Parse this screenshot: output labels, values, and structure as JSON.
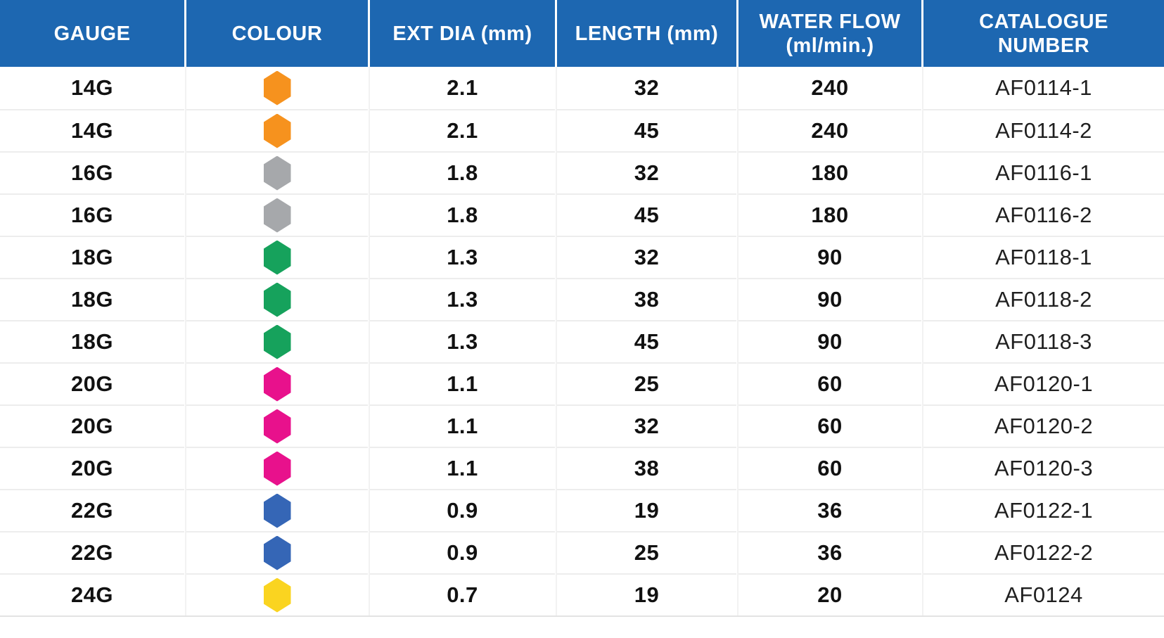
{
  "table": {
    "header_bg": "#1d67b1",
    "header_text_color": "#ffffff",
    "columns": [
      {
        "id": "gauge",
        "label": "GAUGE"
      },
      {
        "id": "colour",
        "label": "COLOUR"
      },
      {
        "id": "ext_dia",
        "label": "EXT DIA (mm)"
      },
      {
        "id": "length",
        "label": "LENGTH (mm)"
      },
      {
        "id": "water_flow",
        "label": "WATER FLOW\n(ml/min.)"
      },
      {
        "id": "catalogue",
        "label": "CATALOGUE\nNUMBER"
      }
    ],
    "rows": [
      {
        "gauge": "14G",
        "colour": "orange",
        "colour_hex": "#f6921e",
        "ext_dia": "2.1",
        "length": "32",
        "water_flow": "240",
        "catalogue": "AF0114-1"
      },
      {
        "gauge": "14G",
        "colour": "orange",
        "colour_hex": "#f6921e",
        "ext_dia": "2.1",
        "length": "45",
        "water_flow": "240",
        "catalogue": "AF0114-2"
      },
      {
        "gauge": "16G",
        "colour": "grey",
        "colour_hex": "#a6a8ab",
        "ext_dia": "1.8",
        "length": "32",
        "water_flow": "180",
        "catalogue": "AF0116-1"
      },
      {
        "gauge": "16G",
        "colour": "grey",
        "colour_hex": "#a6a8ab",
        "ext_dia": "1.8",
        "length": "45",
        "water_flow": "180",
        "catalogue": "AF0116-2"
      },
      {
        "gauge": "18G",
        "colour": "green",
        "colour_hex": "#16a25c",
        "ext_dia": "1.3",
        "length": "32",
        "water_flow": "90",
        "catalogue": "AF0118-1"
      },
      {
        "gauge": "18G",
        "colour": "green",
        "colour_hex": "#16a25c",
        "ext_dia": "1.3",
        "length": "38",
        "water_flow": "90",
        "catalogue": "AF0118-2"
      },
      {
        "gauge": "18G",
        "colour": "green",
        "colour_hex": "#16a25c",
        "ext_dia": "1.3",
        "length": "45",
        "water_flow": "90",
        "catalogue": "AF0118-3"
      },
      {
        "gauge": "20G",
        "colour": "pink",
        "colour_hex": "#e8118c",
        "ext_dia": "1.1",
        "length": "25",
        "water_flow": "60",
        "catalogue": "AF0120-1"
      },
      {
        "gauge": "20G",
        "colour": "pink",
        "colour_hex": "#e8118c",
        "ext_dia": "1.1",
        "length": "32",
        "water_flow": "60",
        "catalogue": "AF0120-2"
      },
      {
        "gauge": "20G",
        "colour": "pink",
        "colour_hex": "#e8118c",
        "ext_dia": "1.1",
        "length": "38",
        "water_flow": "60",
        "catalogue": "AF0120-3"
      },
      {
        "gauge": "22G",
        "colour": "blue",
        "colour_hex": "#3566b6",
        "ext_dia": "0.9",
        "length": "19",
        "water_flow": "36",
        "catalogue": "AF0122-1"
      },
      {
        "gauge": "22G",
        "colour": "blue",
        "colour_hex": "#3566b6",
        "ext_dia": "0.9",
        "length": "25",
        "water_flow": "36",
        "catalogue": "AF0122-2"
      },
      {
        "gauge": "24G",
        "colour": "yellow",
        "colour_hex": "#fad420",
        "ext_dia": "0.7",
        "length": "19",
        "water_flow": "20",
        "catalogue": "AF0124"
      }
    ]
  },
  "chart_data": {
    "type": "table",
    "columns": [
      "GAUGE",
      "COLOUR",
      "EXT DIA (mm)",
      "LENGTH (mm)",
      "WATER FLOW (ml/min.)",
      "CATALOGUE NUMBER"
    ],
    "rows": [
      [
        "14G",
        "orange",
        2.1,
        32,
        240,
        "AF0114-1"
      ],
      [
        "14G",
        "orange",
        2.1,
        45,
        240,
        "AF0114-2"
      ],
      [
        "16G",
        "grey",
        1.8,
        32,
        180,
        "AF0116-1"
      ],
      [
        "16G",
        "grey",
        1.8,
        45,
        180,
        "AF0116-2"
      ],
      [
        "18G",
        "green",
        1.3,
        32,
        90,
        "AF0118-1"
      ],
      [
        "18G",
        "green",
        1.3,
        38,
        90,
        "AF0118-2"
      ],
      [
        "18G",
        "green",
        1.3,
        45,
        90,
        "AF0118-3"
      ],
      [
        "20G",
        "pink",
        1.1,
        25,
        60,
        "AF0120-1"
      ],
      [
        "20G",
        "pink",
        1.1,
        32,
        60,
        "AF0120-2"
      ],
      [
        "20G",
        "pink",
        1.1,
        38,
        60,
        "AF0120-3"
      ],
      [
        "22G",
        "blue",
        0.9,
        19,
        36,
        "AF0122-1"
      ],
      [
        "22G",
        "blue",
        0.9,
        25,
        36,
        "AF0122-2"
      ],
      [
        "24G",
        "yellow",
        0.7,
        19,
        20,
        "AF0124"
      ]
    ],
    "colour_swatches": {
      "orange": "#f6921e",
      "grey": "#a6a8ab",
      "green": "#16a25c",
      "pink": "#e8118c",
      "blue": "#3566b6",
      "yellow": "#fad420"
    },
    "title": "",
    "legend_position": "none",
    "grid": "light-row-separators"
  }
}
